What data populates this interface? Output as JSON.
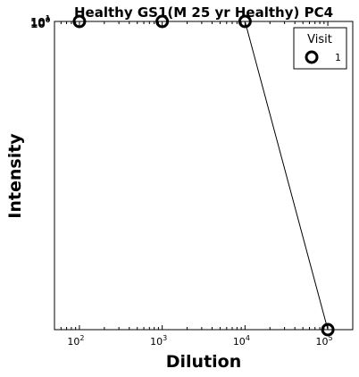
{
  "chart_data": {
    "type": "line",
    "title": "Healthy GS1(M 25 yr Healthy) PC4",
    "xlabel": "Dilution",
    "ylabel": "Intensity",
    "xscale": "log",
    "yscale": "log",
    "xlim": [
      50,
      200000
    ],
    "x_ticks": [
      {
        "base": "10",
        "exp": "2",
        "value": 100
      },
      {
        "base": "10",
        "exp": "3",
        "value": 1000
      },
      {
        "base": "10",
        "exp": "4",
        "value": 10000
      },
      {
        "base": "10",
        "exp": "5",
        "value": 100000
      }
    ],
    "y_tick_label_a": "10",
    "y_tick_exp_a": "1",
    "y_tick_label_b": "10",
    "y_tick_exp_b": "0",
    "legend": {
      "title": "Visit",
      "placement": "top-right"
    },
    "series": [
      {
        "name": "1",
        "color": "#000000",
        "marker": "open-circle",
        "x": [
          100,
          1000,
          10000,
          100000
        ],
        "y": [
          1.0,
          1.0,
          1.0,
          0.3
        ]
      }
    ],
    "grid": false
  }
}
